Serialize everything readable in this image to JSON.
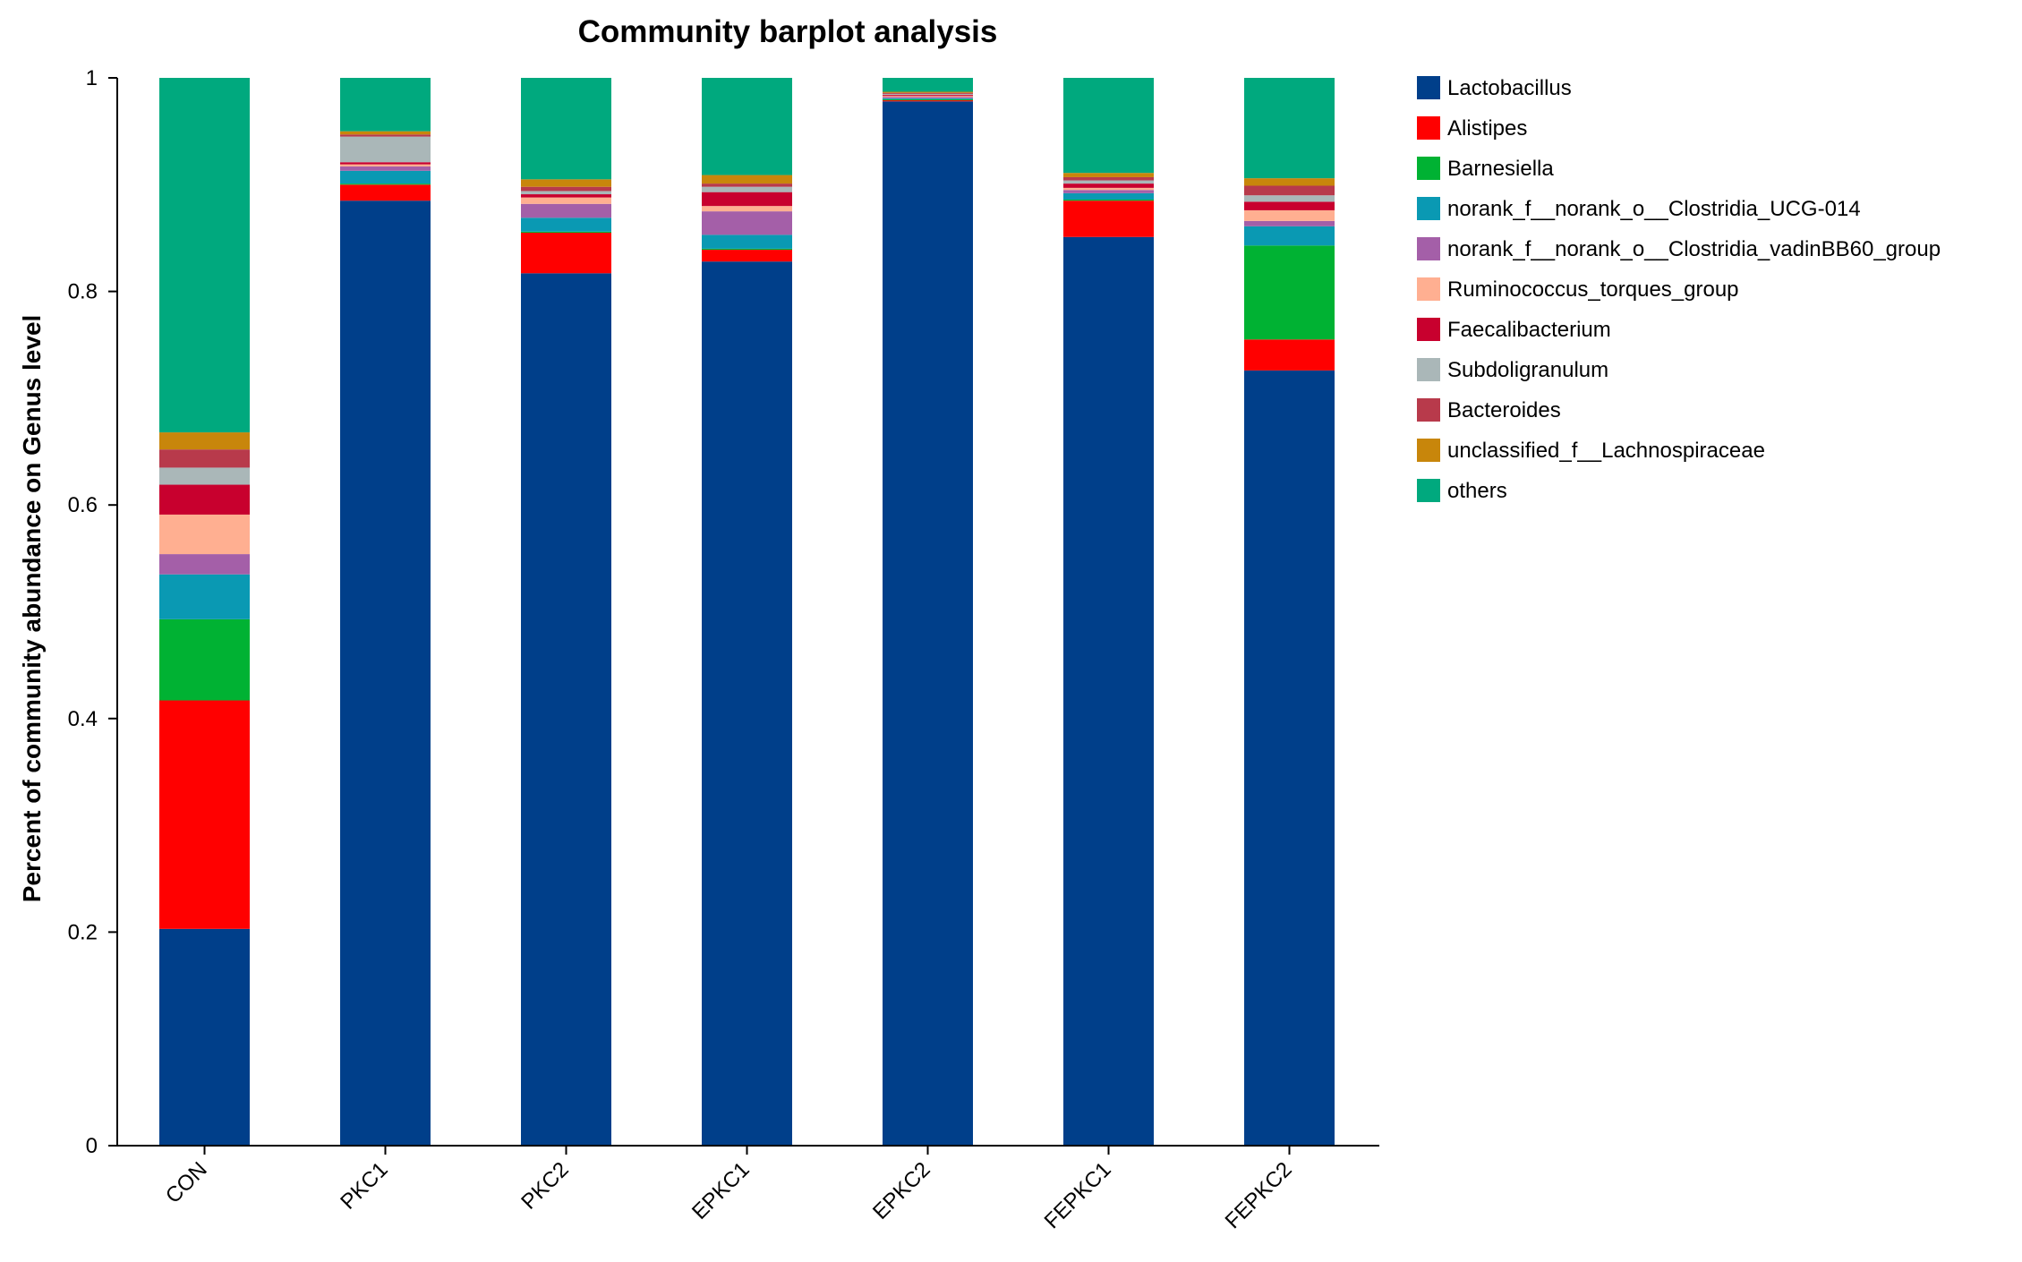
{
  "chart_data": {
    "type": "bar",
    "stacked": true,
    "title": "Community barplot analysis",
    "xlabel": "",
    "ylabel": "Percent of community abundance on Genus level",
    "ylim": [
      0,
      1
    ],
    "yticks": [
      0,
      0.2,
      0.4,
      0.6,
      0.8,
      1
    ],
    "ytick_labels": [
      "0",
      "0.2",
      "0.4",
      "0.6",
      "0.8",
      "1"
    ],
    "categories": [
      "CON",
      "PKC1",
      "PKC2",
      "EPKC1",
      "EPKC2",
      "FEPKC1",
      "FEPKC2"
    ],
    "legend_position": "right",
    "series": [
      {
        "name": "Lactobacillus",
        "color": "#003f8a",
        "values": [
          0.203,
          0.885,
          0.817,
          0.828,
          0.978,
          0.851,
          0.726
        ]
      },
      {
        "name": "Alistipes",
        "color": "#ff0000",
        "values": [
          0.214,
          0.015,
          0.038,
          0.011,
          0.001,
          0.034,
          0.029
        ]
      },
      {
        "name": "Barnesiella",
        "color": "#00b233",
        "values": [
          0.076,
          0.001,
          0.001,
          0.001,
          0.001,
          0.001,
          0.088
        ]
      },
      {
        "name": "norank_f__norank_o__Clostridia_UCG-014",
        "color": "#0a99b3",
        "values": [
          0.042,
          0.012,
          0.013,
          0.013,
          0.001,
          0.006,
          0.018
        ]
      },
      {
        "name": "norank_f__norank_o__Clostridia_vadinBB60_group",
        "color": "#a45fa8",
        "values": [
          0.019,
          0.004,
          0.013,
          0.022,
          0.001,
          0.003,
          0.005
        ]
      },
      {
        "name": "Ruminococcus_torques_group",
        "color": "#ffaf91",
        "values": [
          0.037,
          0.002,
          0.006,
          0.005,
          0.001,
          0.002,
          0.01
        ]
      },
      {
        "name": "Faecalibacterium",
        "color": "#c8002e",
        "values": [
          0.028,
          0.002,
          0.003,
          0.013,
          0.001,
          0.004,
          0.008
        ]
      },
      {
        "name": "Subdoligranulum",
        "color": "#aab7b8",
        "values": [
          0.016,
          0.024,
          0.003,
          0.005,
          0.001,
          0.003,
          0.006
        ]
      },
      {
        "name": "Bacteroides",
        "color": "#b83a4b",
        "values": [
          0.017,
          0.002,
          0.004,
          0.003,
          0.001,
          0.003,
          0.009
        ]
      },
      {
        "name": "unclassified_f__Lachnospiraceae",
        "color": "#c8860b",
        "values": [
          0.016,
          0.003,
          0.007,
          0.008,
          0.001,
          0.004,
          0.007
        ]
      },
      {
        "name": "others",
        "color": "#00a97e",
        "values": [
          0.332,
          0.05,
          0.095,
          0.091,
          0.013,
          0.089,
          0.094
        ]
      }
    ]
  }
}
